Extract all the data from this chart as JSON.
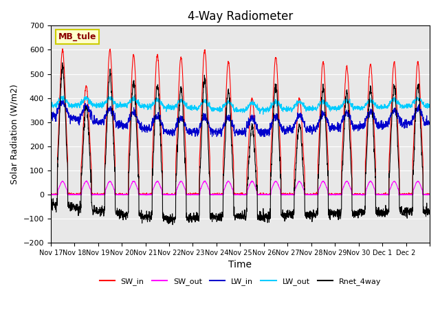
{
  "title": "4-Way Radiometer",
  "xlabel": "Time",
  "ylabel": "Solar Radiation (W/m2)",
  "ylim": [
    -200,
    700
  ],
  "yticks": [
    -200,
    -100,
    0,
    100,
    200,
    300,
    400,
    500,
    600,
    700
  ],
  "xlim": [
    0,
    16
  ],
  "bg_color": "#e8e8e8",
  "fig_color": "#ffffff",
  "station_label": "MB_tule",
  "legend_items": [
    "SW_in",
    "SW_out",
    "LW_in",
    "LW_out",
    "Rnet_4way"
  ],
  "line_colors": [
    "#ff0000",
    "#ff00ff",
    "#0000cc",
    "#00ccff",
    "#000000"
  ],
  "xtick_labels": [
    "Nov 17",
    "Nov 18",
    "Nov 19",
    "Nov 20",
    "Nov 21",
    "Nov 22",
    "Nov 23",
    "Nov 24",
    "Nov 25",
    "Nov 26",
    "Nov 27",
    "Nov 28",
    "Nov 29",
    "Nov 30",
    "Dec 1",
    "Dec 2",
    ""
  ],
  "xtick_positions": [
    0,
    1,
    2,
    3,
    4,
    5,
    6,
    7,
    8,
    9,
    10,
    11,
    12,
    13,
    14,
    15,
    16
  ],
  "n_days": 16,
  "points_per_day": 144
}
